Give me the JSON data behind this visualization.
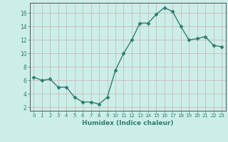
{
  "x": [
    0,
    1,
    2,
    3,
    4,
    5,
    6,
    7,
    8,
    9,
    10,
    11,
    12,
    13,
    14,
    15,
    16,
    17,
    18,
    19,
    20,
    21,
    22,
    23
  ],
  "y": [
    6.5,
    6.0,
    6.2,
    5.0,
    5.0,
    3.5,
    2.8,
    2.8,
    2.5,
    3.5,
    7.5,
    10.0,
    12.0,
    14.5,
    14.5,
    15.8,
    16.8,
    16.2,
    14.0,
    12.0,
    12.2,
    12.5,
    11.2,
    11.0
  ],
  "xlabel": "Humidex (Indice chaleur)",
  "ylim": [
    1.5,
    17.5
  ],
  "xlim": [
    -0.5,
    23.5
  ],
  "yticks": [
    2,
    4,
    6,
    8,
    10,
    12,
    14,
    16
  ],
  "xticks": [
    0,
    1,
    2,
    3,
    4,
    5,
    6,
    7,
    8,
    9,
    10,
    11,
    12,
    13,
    14,
    15,
    16,
    17,
    18,
    19,
    20,
    21,
    22,
    23
  ],
  "line_color": "#2e7d6e",
  "marker": "D",
  "marker_size": 2.5,
  "bg_color": "#cceee8",
  "grid_color": "#c8b0b0",
  "axis_color": "#555555"
}
